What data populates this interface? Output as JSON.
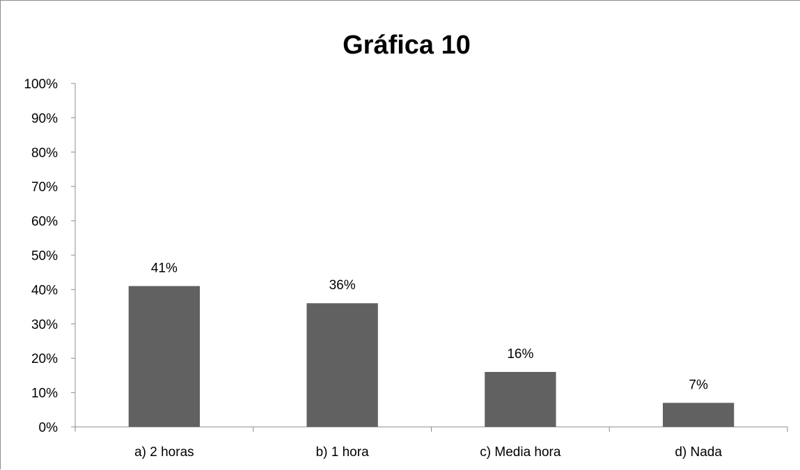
{
  "chart_data": {
    "type": "bar",
    "title": "Gráfica  10",
    "categories": [
      "a) 2 horas",
      "b) 1 hora",
      "c) Media hora",
      "d) Nada"
    ],
    "values": [
      41,
      36,
      16,
      7
    ],
    "data_labels": [
      "41%",
      "36%",
      "16%",
      "7%"
    ],
    "xlabel": "",
    "ylabel": "",
    "ylim": [
      0,
      100
    ],
    "ytick_step": 10,
    "ytick_labels": [
      "0%",
      "10%",
      "20%",
      "30%",
      "40%",
      "50%",
      "60%",
      "70%",
      "80%",
      "90%",
      "100%"
    ],
    "grid": false,
    "legend": "none",
    "bar_color": "#616161"
  }
}
